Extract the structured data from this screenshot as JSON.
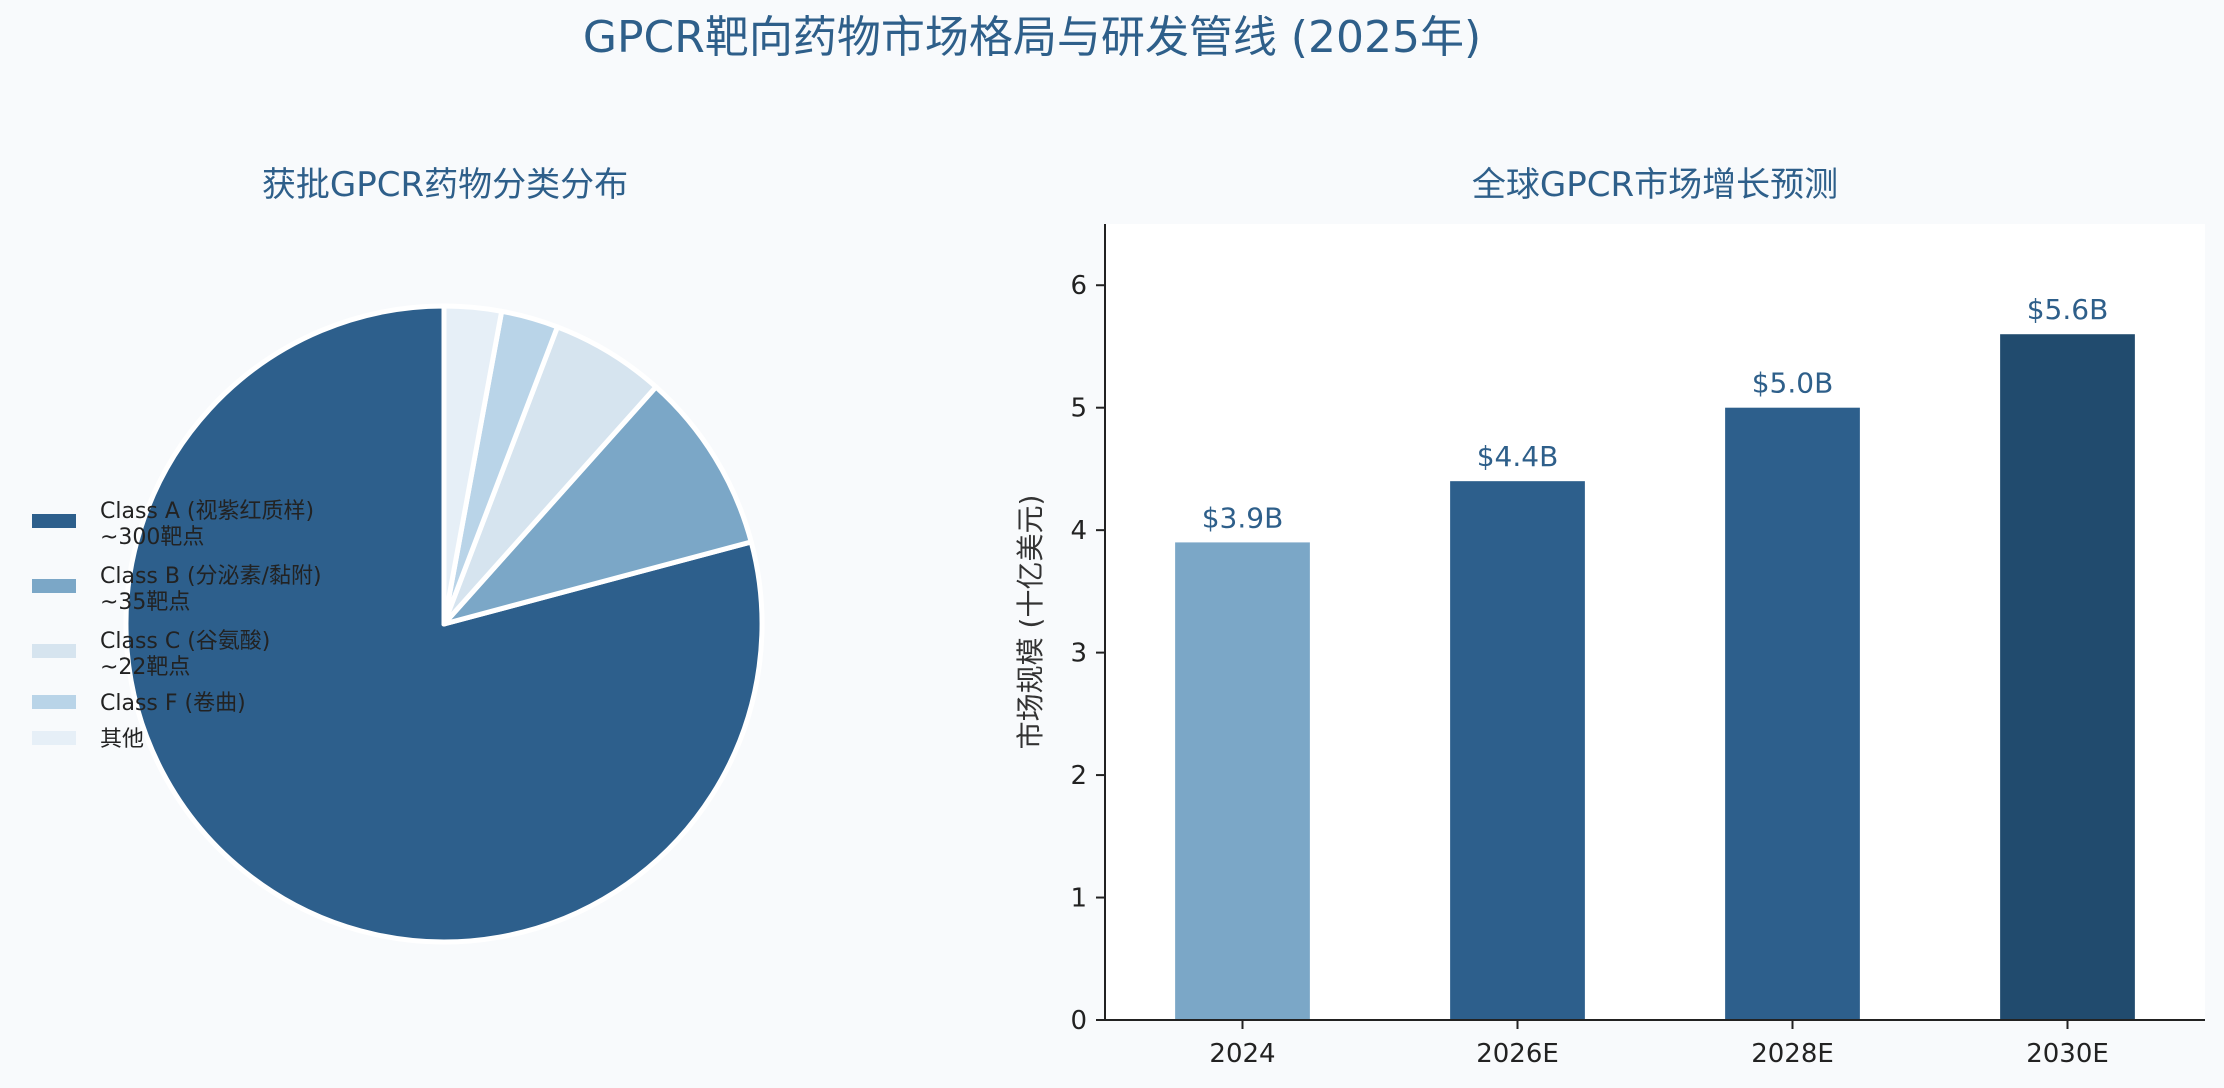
{
  "title": "GPCR靶向药物市场格局与研发管线 (2025年)",
  "colors": {
    "title": "#2e5f8a",
    "figure_bg": "#f8fafc",
    "plot_bg": "#ffffff",
    "axis": "#222222"
  },
  "chart_data": [
    {
      "type": "pie",
      "title": "获批GPCR药物分类分布",
      "slices": [
        {
          "label": "Class A (视紫红质样)",
          "sublabel": "~300靶点",
          "value": 300,
          "color": "#2d5f8c"
        },
        {
          "label": "Class B (分泌素/黏附)",
          "sublabel": "~35靶点",
          "value": 35,
          "color": "#7ba7c7"
        },
        {
          "label": "Class C (谷氨酸)",
          "sublabel": "~22靶点",
          "value": 22,
          "color": "#d6e4ef"
        },
        {
          "label": "Class F (卷曲)",
          "sublabel": "",
          "value": 11,
          "color": "#b9d4e8"
        },
        {
          "label": "其他",
          "sublabel": "",
          "value": 11,
          "color": "#e6eff7"
        }
      ],
      "start_angle_deg": 90,
      "direction": "counterclockwise",
      "legend_position": "left"
    },
    {
      "type": "bar",
      "title": "全球GPCR市场增长预测",
      "categories": [
        "2024",
        "2026E",
        "2028E",
        "2030E"
      ],
      "values": [
        3.9,
        4.4,
        5.0,
        5.6
      ],
      "value_labels": [
        "$3.9B",
        "$4.4B",
        "$5.0B",
        "$5.6B"
      ],
      "colors": [
        "#7ba7c7",
        "#2d5f8c",
        "#2d5f8c",
        "#214b6e"
      ],
      "ylabel": "市场规模 (十亿美元)",
      "ylim": [
        0,
        6.5
      ],
      "yticks": [
        "0",
        "1",
        "2",
        "3",
        "4",
        "5",
        "6"
      ],
      "grid": false
    }
  ]
}
